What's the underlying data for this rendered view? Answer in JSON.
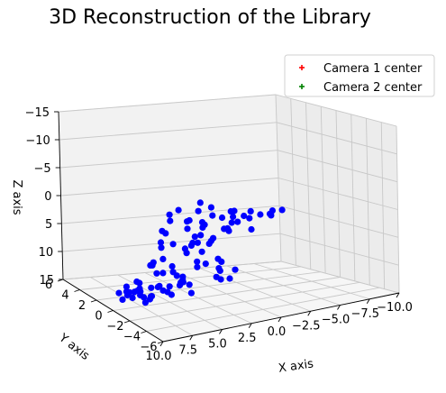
{
  "chart_data": {
    "type": "scatter",
    "title": "3D Reconstruction of the Library",
    "xlabel": "X axis",
    "ylabel": "Y axis",
    "zlabel": "Z axis",
    "xticks": [
      "10.0",
      "7.5",
      "5.0",
      "2.5",
      "0.0",
      "−2.5",
      "−5.0",
      "−7.5",
      "−10.0"
    ],
    "yticks": [
      "6",
      "4",
      "2",
      "0",
      "−2",
      "−4",
      "−6"
    ],
    "zticks": [
      "−15",
      "−10",
      "−5",
      "0",
      "5",
      "10",
      "15"
    ],
    "xlim": [
      10,
      -10
    ],
    "ylim": [
      6,
      -6
    ],
    "zlim": [
      -15,
      15
    ],
    "grid": true,
    "legend_position": "top-right",
    "series": [
      {
        "name": "Camera 1 center",
        "marker": "plus",
        "color": "#ff0000",
        "points": []
      },
      {
        "name": "Camera 2 center",
        "marker": "plus",
        "color": "#008000",
        "points": []
      },
      {
        "name": "",
        "marker": "circle",
        "color": "#0000ff",
        "points": [
          [
            8.5,
            0,
            12
          ],
          [
            8.6,
            -0.5,
            12.5
          ],
          [
            8.3,
            0.5,
            13
          ],
          [
            8.0,
            1,
            12
          ],
          [
            7.8,
            -1,
            13
          ],
          [
            8.9,
            0.3,
            13.5
          ],
          [
            9.0,
            -0.3,
            11.5
          ],
          [
            8.7,
            1,
            13
          ],
          [
            8.4,
            -0.8,
            11
          ],
          [
            7.9,
            0.2,
            12.2
          ],
          [
            7.5,
            0,
            12
          ],
          [
            7.2,
            0.5,
            11
          ],
          [
            7.0,
            -0.5,
            13
          ],
          [
            6.8,
            1,
            12.5
          ],
          [
            6.5,
            0,
            11.5
          ],
          [
            7.3,
            -1,
            12
          ],
          [
            6.9,
            0.8,
            13.5
          ],
          [
            7.6,
            0.3,
            10.5
          ],
          [
            6.6,
            -0.2,
            12.8
          ],
          [
            7.1,
            0.1,
            13.2
          ],
          [
            6.2,
            0.5,
            8
          ],
          [
            6.0,
            0,
            9
          ],
          [
            5.8,
            -0.5,
            8.5
          ],
          [
            6.4,
            0,
            7.5
          ],
          [
            5.5,
            0.5,
            12
          ],
          [
            5.2,
            -0.5,
            11
          ],
          [
            5.0,
            0,
            12.5
          ],
          [
            4.8,
            0.8,
            13
          ],
          [
            5.4,
            -1,
            12
          ],
          [
            5.6,
            0.2,
            11.5
          ],
          [
            4.5,
            0,
            9
          ],
          [
            4.2,
            0.5,
            8.5
          ],
          [
            4.0,
            -0.5,
            10
          ],
          [
            3.8,
            0,
            11
          ],
          [
            3.5,
            0.5,
            12
          ],
          [
            3.2,
            -0.5,
            12.5
          ],
          [
            3.0,
            0,
            11.5
          ],
          [
            2.8,
            1,
            12
          ],
          [
            3.6,
            0,
            10
          ],
          [
            4.3,
            -0.2,
            9.5
          ],
          [
            3.0,
            0,
            0
          ],
          [
            2.8,
            0.5,
            2
          ],
          [
            2.5,
            0,
            3
          ],
          [
            3.2,
            -0.5,
            4
          ],
          [
            2.6,
            0.8,
            1
          ],
          [
            3.4,
            0,
            5
          ],
          [
            2.2,
            -0.3,
            2.5
          ],
          [
            3.1,
            0.2,
            6
          ],
          [
            2.7,
            -0.6,
            3.5
          ],
          [
            2.4,
            0.4,
            4.5
          ],
          [
            2.0,
            0,
            -3
          ],
          [
            1.8,
            0.5,
            -1
          ],
          [
            2.2,
            -0.5,
            0
          ],
          [
            1.6,
            0,
            1
          ],
          [
            1.4,
            0.5,
            2
          ],
          [
            1.2,
            -0.5,
            3
          ],
          [
            1.0,
            0,
            4
          ],
          [
            0.8,
            0.5,
            5
          ],
          [
            1.7,
            0.2,
            6
          ],
          [
            0.6,
            -0.3,
            7
          ],
          [
            1.0,
            0,
            -2
          ],
          [
            0.5,
            0.5,
            0
          ],
          [
            0,
            0,
            0
          ],
          [
            -0.5,
            -0.5,
            0.5
          ],
          [
            -1,
            0,
            0
          ],
          [
            -1.5,
            0.5,
            -0.5
          ],
          [
            -2,
            0,
            0
          ],
          [
            -2.5,
            0,
            0.5
          ],
          [
            -3,
            0.5,
            -0.2
          ],
          [
            -3.5,
            0,
            0
          ],
          [
            -4,
            -0.5,
            -0.5
          ],
          [
            -4.5,
            0,
            0.3
          ],
          [
            -5,
            0.5,
            0
          ],
          [
            -5.5,
            0,
            -0.5
          ],
          [
            -0.5,
            0,
            2
          ],
          [
            -1,
            0.5,
            3
          ],
          [
            0.2,
            -0.5,
            1.5
          ],
          [
            -1.8,
            0.5,
            1.5
          ],
          [
            -2.3,
            -0.5,
            2
          ],
          [
            -0.8,
            0,
            -1
          ],
          [
            0.3,
            0,
            9
          ],
          [
            -0.2,
            0.5,
            10
          ],
          [
            -0.7,
            0,
            11
          ],
          [
            0.5,
            -0.5,
            10.5
          ],
          [
            -1.2,
            0,
            9.5
          ],
          [
            1.5,
            0,
            8
          ],
          [
            1.9,
            0.5,
            9
          ],
          [
            0.9,
            -0.5,
            10
          ],
          [
            2.3,
            0,
            7.5
          ],
          [
            -0.4,
            0.6,
            8.5
          ],
          [
            5.5,
            0,
            1.5
          ],
          [
            4.8,
            0.5,
            2.5
          ],
          [
            6.0,
            -0.5,
            3
          ],
          [
            4.5,
            0,
            4
          ],
          [
            5.2,
            0.5,
            5
          ],
          [
            5.8,
            -0.5,
            6
          ],
          [
            6.3,
            0,
            7
          ],
          [
            4.6,
            0.3,
            -1
          ],
          [
            5.0,
            -0.3,
            -0.5
          ],
          [
            4.0,
            0,
            -2
          ]
        ]
      }
    ]
  }
}
